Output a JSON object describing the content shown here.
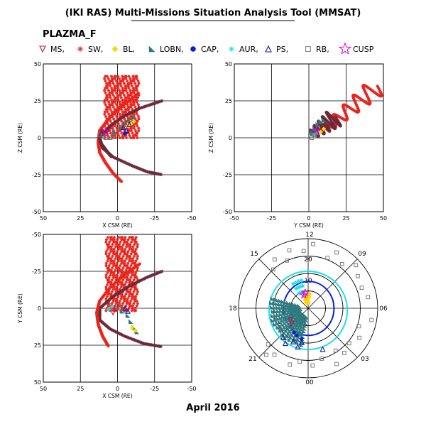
{
  "title": "(IKI RAS) Multi-Missions Situation Analysis Tool (MMSAT)",
  "mission": "PLAZMA_F",
  "footer": "April 2016",
  "legend": [
    {
      "label": "MS,",
      "icon": "triangle-down-icon",
      "color": "#c0143c"
    },
    {
      "label": "SW,",
      "icon": "asterisk-icon",
      "color": "#e8251d"
    },
    {
      "label": "BL,",
      "icon": "diamond-icon",
      "color": "#ffd400"
    },
    {
      "label": "LOBN,",
      "icon": "wedge-icon",
      "color": "#2e7b80"
    },
    {
      "label": "CAP,",
      "icon": "filled-circle-icon",
      "color": "#0a1ee0"
    },
    {
      "label": "AUR,",
      "icon": "star-burst-icon",
      "color": "#1ee0e8"
    },
    {
      "label": "PS,",
      "icon": "triangle-up-icon",
      "color": "#1a1aa0"
    },
    {
      "label": "RB,",
      "icon": "square-icon",
      "color": "#707070"
    },
    {
      "label": "CUSP",
      "icon": "star-icon",
      "color": "#e000e0"
    }
  ],
  "chart_data": [
    {
      "type": "scatter",
      "id": "xz",
      "xlabel": "X CSM (RE)",
      "ylabel": "Z CSM (RE)",
      "xlim": [
        50,
        -50
      ],
      "ylim": [
        -50,
        50
      ],
      "xticks": [
        50,
        25,
        0,
        -25,
        -50
      ],
      "yticks": [
        50,
        25,
        0,
        -25,
        -50
      ],
      "xtick_labels": [
        "50",
        "25",
        "0",
        "-25",
        "-50"
      ],
      "ytick_labels": [
        "50",
        "25",
        "0",
        "-25",
        "-50"
      ],
      "grid": true,
      "series": [
        {
          "kind": "sw_band",
          "color": "#e8251d",
          "x": [
            8,
            -14
          ],
          "z": [
            0,
            42
          ]
        },
        {
          "kind": "curve",
          "color": "#6b2a3a",
          "points": [
            [
              -30,
              25
            ],
            [
              -15,
              20
            ],
            [
              -5,
              15
            ],
            [
              5,
              8
            ],
            [
              12,
              0
            ],
            [
              10,
              -7
            ],
            [
              3,
              -13
            ],
            [
              -10,
              -19
            ],
            [
              -20,
              -23
            ],
            [
              -30,
              -25
            ]
          ]
        },
        {
          "kind": "curve",
          "color": "#e8251d",
          "points": [
            [
              -14,
              30
            ],
            [
              -5,
              23
            ],
            [
              5,
              14
            ],
            [
              12,
              5
            ],
            [
              13,
              -3
            ],
            [
              12,
              -10
            ],
            [
              8,
              -17
            ],
            [
              3,
              -24
            ],
            [
              -3,
              -30
            ]
          ]
        },
        {
          "kind": "curve",
          "color": "#6b2a3a",
          "points": [
            [
              10,
              5
            ],
            [
              12,
              0
            ],
            [
              11,
              -4
            ],
            [
              8,
              -8
            ],
            [
              4,
              -13
            ]
          ]
        },
        {
          "kind": "points",
          "symbol": "wedge",
          "color": "#2e7b80",
          "points": [
            [
              2,
              4
            ],
            [
              -2,
              7
            ],
            [
              -5,
              10
            ],
            [
              -8,
              12
            ],
            [
              -11,
              14
            ]
          ]
        },
        {
          "kind": "points",
          "symbol": "diamond",
          "color": "#ffd400",
          "points": [
            [
              -11,
              11
            ],
            [
              -9,
              9
            ],
            [
              -7,
              8
            ]
          ]
        },
        {
          "kind": "points",
          "symbol": "circle",
          "color": "#0a1ee0",
          "points": [
            [
              -5,
              3
            ]
          ]
        },
        {
          "kind": "points",
          "symbol": "triangle-up",
          "color": "#1a1aa0",
          "points": [
            [
              -6,
              5
            ],
            [
              -4,
              7
            ],
            [
              -8,
              9
            ]
          ]
        },
        {
          "kind": "points",
          "symbol": "square",
          "color": "#707070",
          "points": [
            [
              5,
              0
            ],
            [
              8,
              0
            ],
            [
              10,
              1
            ],
            [
              3,
              1
            ],
            [
              12,
              2
            ]
          ]
        },
        {
          "kind": "points",
          "symbol": "star",
          "color": "#e000e0",
          "points": [
            [
              8,
              4
            ]
          ]
        }
      ]
    },
    {
      "type": "scatter",
      "id": "yz",
      "xlabel": "Y CSM (RE)",
      "ylabel": "Z CSM (RE)",
      "xlim": [
        -50,
        50
      ],
      "ylim": [
        -50,
        50
      ],
      "xticks": [
        -50,
        -25,
        0,
        25,
        50
      ],
      "yticks": [
        50,
        25,
        0,
        -25,
        -50
      ],
      "xtick_labels": [
        "-50",
        "-25",
        "0",
        "25",
        "50"
      ],
      "ytick_labels": [
        "50",
        "25",
        "0",
        "-25",
        "-50"
      ],
      "grid": true,
      "series": [
        {
          "kind": "coil",
          "color": "#e8251d",
          "from": [
            10,
            5
          ],
          "to": [
            46,
            35
          ]
        },
        {
          "kind": "coil",
          "color": "#6b2a3a",
          "from": [
            2,
            2
          ],
          "to": [
            18,
            14
          ]
        },
        {
          "kind": "points",
          "symbol": "wedge",
          "color": "#2e7b80",
          "points": [
            [
              2,
              4
            ],
            [
              4,
              6
            ],
            [
              6,
              9
            ],
            [
              8,
              11
            ],
            [
              10,
              12
            ]
          ]
        },
        {
          "kind": "points",
          "symbol": "diamond",
          "color": "#ffd400",
          "points": [
            [
              8,
              4
            ],
            [
              10,
              6
            ]
          ]
        },
        {
          "kind": "points",
          "symbol": "asterisk",
          "color": "#1ee0e8",
          "points": [
            [
              3,
              2
            ],
            [
              5,
              3
            ]
          ]
        },
        {
          "kind": "points",
          "symbol": "square",
          "color": "#707070",
          "points": [
            [
              1,
              1
            ],
            [
              2,
              0
            ],
            [
              4,
              2
            ],
            [
              6,
              1
            ]
          ]
        },
        {
          "kind": "points",
          "symbol": "star",
          "color": "#e000e0",
          "points": [
            [
              5,
              5
            ]
          ]
        }
      ]
    },
    {
      "type": "scatter",
      "id": "xy",
      "xlabel": "X CSM (RE)",
      "ylabel": "Y CSM (RE)",
      "xlim": [
        50,
        -50
      ],
      "ylim": [
        -50,
        50
      ],
      "xticks": [
        50,
        25,
        0,
        -25,
        -50
      ],
      "yticks": [
        -50,
        -25,
        0,
        25,
        50
      ],
      "xtick_labels": [
        "50",
        "25",
        "0",
        "-25",
        "-50"
      ],
      "ytick_labels": [
        "-50",
        "-25",
        "0",
        "25",
        "50"
      ],
      "grid": true,
      "series": [
        {
          "kind": "sw_band",
          "color": "#e8251d",
          "x": [
            7,
            -13
          ],
          "z": [
            -48,
            2
          ]
        },
        {
          "kind": "curve",
          "color": "#6b2a3a",
          "points": [
            [
              -30,
              -25
            ],
            [
              -20,
              -21
            ],
            [
              -8,
              -15
            ],
            [
              3,
              -8
            ],
            [
              12,
              0
            ],
            [
              12,
              8
            ],
            [
              5,
              14
            ],
            [
              -5,
              19
            ],
            [
              -18,
              24
            ],
            [
              -30,
              26
            ]
          ]
        },
        {
          "kind": "curve",
          "color": "#e8251d",
          "points": [
            [
              -15,
              -30
            ],
            [
              -5,
              -23
            ],
            [
              5,
              -14
            ],
            [
              12,
              -5
            ],
            [
              14,
              3
            ],
            [
              13,
              11
            ],
            [
              10,
              19
            ],
            [
              6,
              26
            ]
          ]
        },
        {
          "kind": "points",
          "symbol": "wedge",
          "color": "#2e7b80",
          "points": [
            [
              -3,
              2
            ],
            [
              -7,
              5
            ],
            [
              -9,
              9
            ],
            [
              -11,
              13
            ],
            [
              -13,
              16
            ]
          ]
        },
        {
          "kind": "points",
          "symbol": "diamond",
          "color": "#ffd400",
          "points": [
            [
              -12,
              15
            ],
            [
              -10,
              13
            ]
          ]
        },
        {
          "kind": "points",
          "symbol": "asterisk",
          "color": "#1ee0e8",
          "points": [
            [
              6,
              1
            ],
            [
              4,
              -1
            ]
          ]
        },
        {
          "kind": "points",
          "symbol": "triangle-down",
          "color": "#c0143c",
          "points": [
            [
              1,
              0
            ],
            [
              3,
              3
            ]
          ]
        },
        {
          "kind": "points",
          "symbol": "square",
          "color": "#707070",
          "points": [
            [
              -2,
              0
            ],
            [
              -5,
              2
            ],
            [
              0,
              -2
            ]
          ]
        },
        {
          "kind": "points",
          "symbol": "triangle-up",
          "color": "#1a1aa0",
          "points": [
            [
              -5,
              0
            ],
            [
              -7,
              2
            ]
          ]
        }
      ]
    },
    {
      "type": "polar",
      "id": "mlt-invlat",
      "mlt_labels": [
        "12",
        "15",
        "18",
        "21",
        "00",
        "03",
        "06",
        "09"
      ],
      "ring_labels": [
        "10",
        "20"
      ],
      "rings": [
        10,
        20,
        30,
        40
      ],
      "series": [
        {
          "kind": "oval",
          "color": "#0a1ee0",
          "center": [
            0.35,
            0.1
          ],
          "rx": 14.5,
          "ry": 15.5
        },
        {
          "kind": "oval",
          "color": "#1ee0e8",
          "center": [
            0.0,
            1.2
          ],
          "rx": 22.5,
          "ry": 22.5
        },
        {
          "kind": "sector",
          "color": "#2e7b80",
          "mlt_range": [
            17,
            23.5
          ],
          "r_range": [
            5,
            22
          ]
        },
        {
          "kind": "points",
          "symbol": "square",
          "color": "#707070",
          "note": "scattered outer points"
        },
        {
          "kind": "points",
          "symbol": "diamond",
          "color": "#ffd400",
          "mlt_range": [
            11.5,
            13.5
          ],
          "r_range": [
            2,
            9
          ]
        },
        {
          "kind": "points",
          "symbol": "asterisk",
          "color": "#1ee0e8",
          "mlt_range": [
            13,
            14.5
          ],
          "r_range": [
            9,
            20
          ]
        },
        {
          "kind": "points",
          "symbol": "triangle-up",
          "color": "#1a1aa0",
          "mlt_range": [
            21,
            23.5
          ],
          "r_range": [
            18,
            24
          ]
        },
        {
          "kind": "points",
          "symbol": "circle",
          "color": "#0a1ee0",
          "mlt_range": [
            22,
            23
          ],
          "r_range": [
            16,
            18
          ]
        },
        {
          "kind": "points",
          "symbol": "star",
          "color": "#e000e0",
          "mlt_range": [
            12.5,
            13
          ],
          "r_range": [
            8,
            10
          ]
        }
      ]
    }
  ]
}
